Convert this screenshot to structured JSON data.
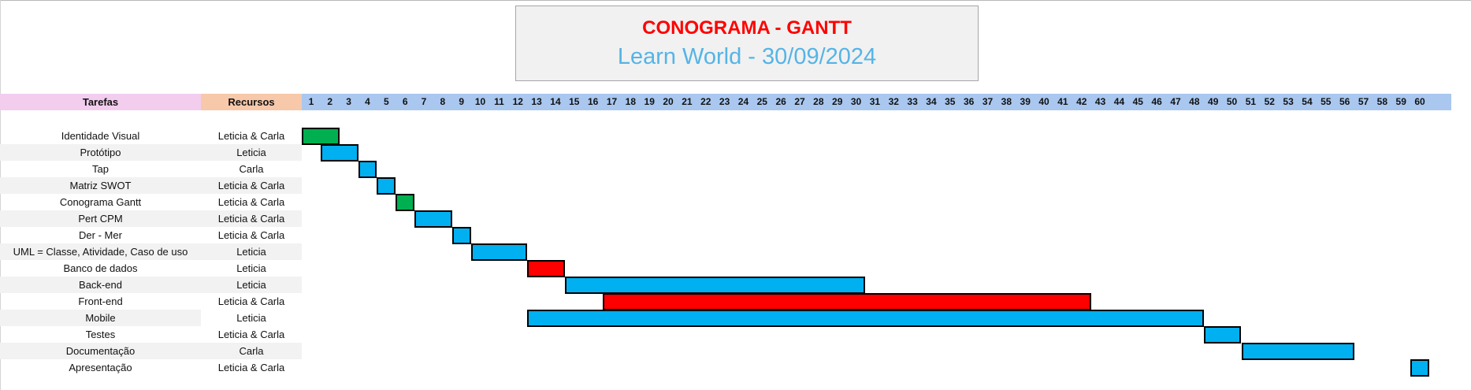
{
  "title": "CONOGRAMA - GANTT",
  "subtitle": "Learn World - 30/09/2024",
  "headers": {
    "tasks": "Tarefas",
    "resources": "Recursos"
  },
  "days": [
    "1",
    "2",
    "3",
    "4",
    "5",
    "6",
    "7",
    "8",
    "9",
    "10",
    "11",
    "12",
    "13",
    "14",
    "15",
    "16",
    "17",
    "18",
    "19",
    "20",
    "21",
    "22",
    "23",
    "24",
    "25",
    "26",
    "27",
    "28",
    "29",
    "30",
    "31",
    "32",
    "33",
    "34",
    "35",
    "36",
    "37",
    "38",
    "39",
    "40",
    "41",
    "42",
    "43",
    "44",
    "45",
    "46",
    "47",
    "48",
    "49",
    "50",
    "51",
    "52",
    "53",
    "54",
    "55",
    "56",
    "57",
    "58",
    "59",
    "60"
  ],
  "colors": {
    "done": "#00b050",
    "planned": "#00b0f0",
    "critical": "#ff0000"
  },
  "tasks": [
    {
      "name": "Identidade Visual",
      "resource": "Leticia & Carla",
      "start": 1,
      "end": 2,
      "status": "done"
    },
    {
      "name": "Protótipo",
      "resource": "Leticia",
      "start": 2,
      "end": 3,
      "status": "planned"
    },
    {
      "name": "Tap",
      "resource": "Carla",
      "start": 4,
      "end": 4,
      "status": "planned"
    },
    {
      "name": "Matriz SWOT",
      "resource": "Leticia & Carla",
      "start": 5,
      "end": 5,
      "status": "planned"
    },
    {
      "name": "Conograma Gantt",
      "resource": "Leticia & Carla",
      "start": 6,
      "end": 6,
      "status": "done"
    },
    {
      "name": "Pert CPM",
      "resource": "Leticia & Carla",
      "start": 7,
      "end": 8,
      "status": "planned"
    },
    {
      "name": "Der - Mer",
      "resource": "Leticia & Carla",
      "start": 9,
      "end": 9,
      "status": "planned"
    },
    {
      "name": "UML = Classe, Atividade, Caso de uso",
      "resource": "Leticia",
      "start": 10,
      "end": 12,
      "status": "planned"
    },
    {
      "name": "Banco de dados",
      "resource": "Leticia",
      "start": 13,
      "end": 14,
      "status": "critical"
    },
    {
      "name": "Back-end",
      "resource": "Leticia",
      "start": 15,
      "end": 30,
      "status": "planned"
    },
    {
      "name": "Front-end",
      "resource": "Leticia & Carla",
      "start": 17,
      "end": 42,
      "status": "critical"
    },
    {
      "name": "Mobile",
      "resource": "Leticia",
      "start": 13,
      "end": 48,
      "status": "planned"
    },
    {
      "name": "Testes",
      "resource": "Leticia & Carla",
      "start": 49,
      "end": 50,
      "status": "planned"
    },
    {
      "name": "Documentação",
      "resource": "Carla",
      "start": 51,
      "end": 56,
      "status": "planned"
    },
    {
      "name": "Apresentação",
      "resource": "Leticia & Carla",
      "start": 60,
      "end": 60,
      "status": "planned"
    }
  ]
}
